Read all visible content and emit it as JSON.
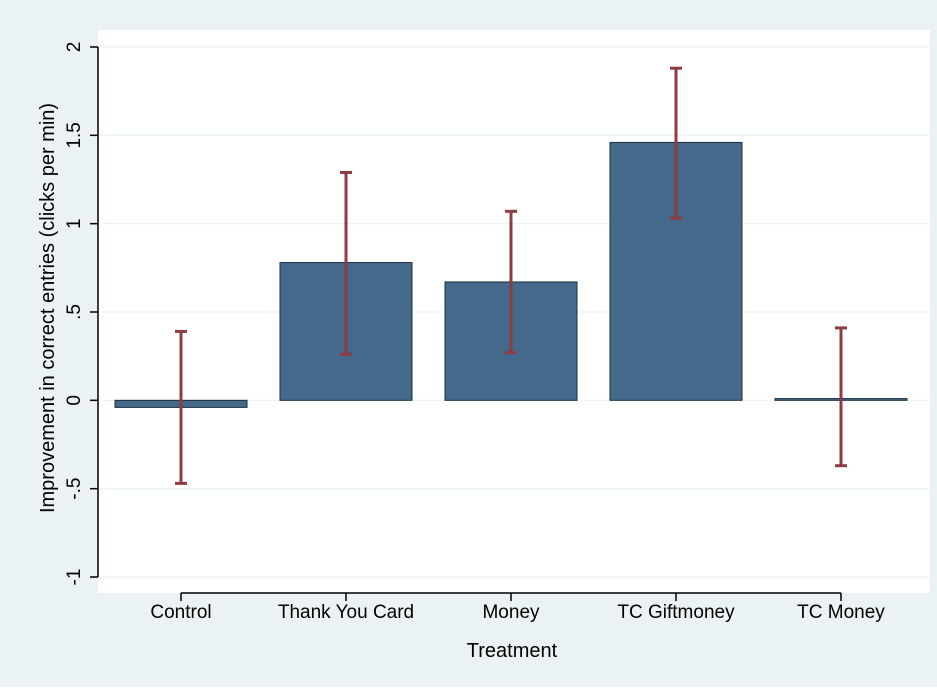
{
  "chart_data": {
    "type": "bar",
    "xlabel": "Treatment",
    "ylabel": "Improvement in correct entries (clicks per min)",
    "ylim": [
      -1,
      2
    ],
    "yticks": [
      -1,
      -0.5,
      0,
      0.5,
      1,
      1.5,
      2
    ],
    "ytick_labels": [
      "-1",
      "-.5",
      "0",
      ".5",
      "1",
      "1.5",
      "2"
    ],
    "grid": true,
    "categories": [
      "Control",
      "Thank You Card",
      "Money",
      "TC Giftmoney",
      "TC Money"
    ],
    "values": [
      -0.04,
      0.78,
      0.67,
      1.46,
      0.01
    ],
    "error_low": [
      -0.47,
      0.26,
      0.27,
      1.03,
      -0.37
    ],
    "error_high": [
      0.39,
      1.29,
      1.07,
      1.88,
      0.41
    ],
    "colors": {
      "bar": "#44698b",
      "bar_outline": "#1b2e40",
      "error_bar": "#8e3b43",
      "outer_background": "#eaf2f3",
      "plot_background": "#ffffff",
      "grid": "#eaf2f3"
    }
  }
}
